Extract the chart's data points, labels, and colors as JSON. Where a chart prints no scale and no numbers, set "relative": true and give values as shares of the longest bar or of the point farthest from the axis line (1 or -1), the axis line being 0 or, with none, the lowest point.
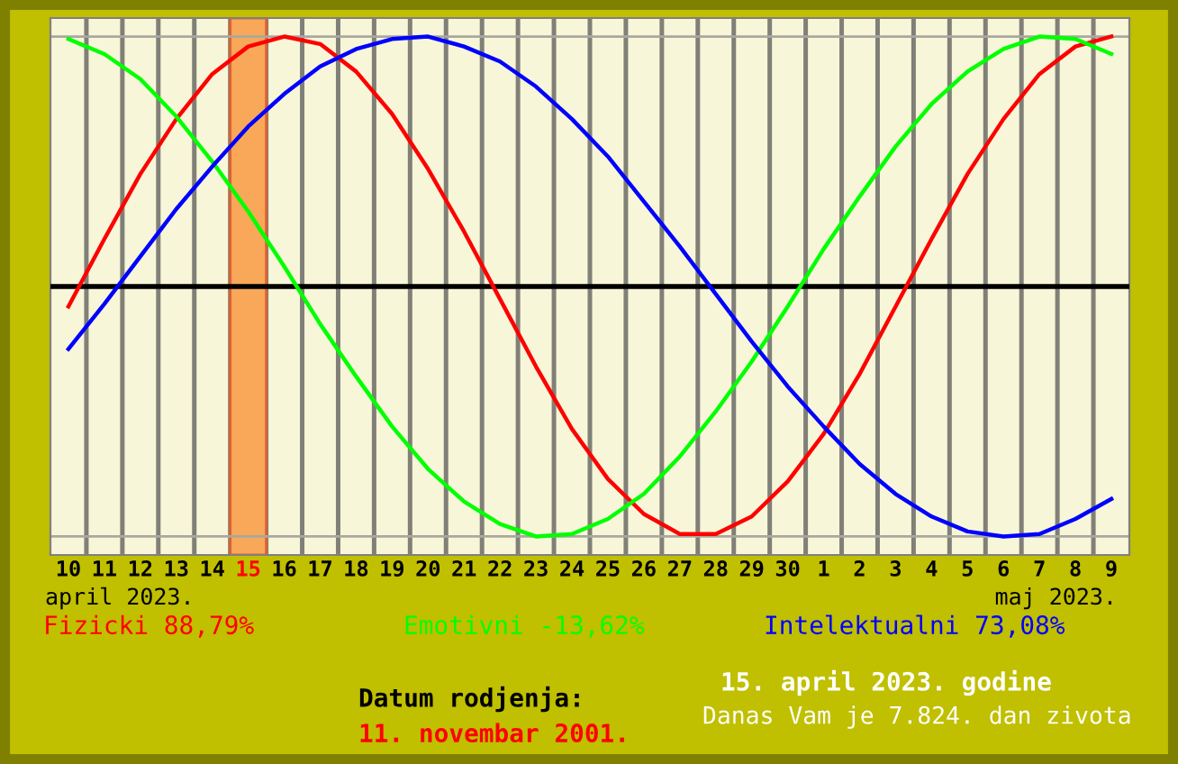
{
  "chart_data": {
    "type": "line",
    "relative": true,
    "categories": [
      "10",
      "11",
      "12",
      "13",
      "14",
      "15",
      "16",
      "17",
      "18",
      "19",
      "20",
      "21",
      "22",
      "23",
      "24",
      "25",
      "26",
      "27",
      "28",
      "29",
      "30",
      "1",
      "2",
      "3",
      "4",
      "5",
      "6",
      "7",
      "8",
      "9"
    ],
    "series": [
      {
        "name": "Fizicki 88,79%",
        "color": "#ff0000",
        "values": [
          -0.08,
          0.19,
          0.45,
          0.67,
          0.85,
          0.96,
          1.0,
          0.97,
          0.86,
          0.69,
          0.47,
          0.22,
          -0.05,
          -0.32,
          -0.57,
          -0.77,
          -0.91,
          -0.99,
          -0.99,
          -0.92,
          -0.78,
          -0.59,
          -0.35,
          -0.08,
          0.19,
          0.45,
          0.67,
          0.85,
          0.96,
          1.0
        ]
      },
      {
        "name": "Emotivni -13,62%",
        "color": "#00ff00",
        "values": [
          0.99,
          0.93,
          0.83,
          0.68,
          0.5,
          0.3,
          0.08,
          -0.15,
          -0.36,
          -0.56,
          -0.73,
          -0.86,
          -0.95,
          -1.0,
          -0.99,
          -0.93,
          -0.83,
          -0.68,
          -0.5,
          -0.3,
          -0.08,
          0.15,
          0.36,
          0.56,
          0.73,
          0.86,
          0.95,
          1.0,
          0.99,
          0.93
        ]
      },
      {
        "name": "Intelektualni 73,08%",
        "color": "#0000ff",
        "values": [
          -0.25,
          -0.07,
          0.12,
          0.31,
          0.48,
          0.64,
          0.77,
          0.88,
          0.95,
          0.99,
          1.0,
          0.96,
          0.9,
          0.8,
          0.67,
          0.52,
          0.34,
          0.16,
          -0.03,
          -0.22,
          -0.4,
          -0.56,
          -0.71,
          -0.83,
          -0.92,
          -0.98,
          -1.0,
          -0.99,
          -0.93,
          -0.85
        ]
      }
    ],
    "bands": [
      {
        "axis": "x",
        "from": "15",
        "to": "15",
        "color": "#f8a858"
      }
    ],
    "ref_lines": [
      {
        "axis": "y",
        "value": 1,
        "color": "#a8a8a0"
      },
      {
        "axis": "y",
        "value": -1,
        "color": "#a8a8a0"
      }
    ],
    "grid": "x",
    "legend": "bottom",
    "marker": "none",
    "line_style": "solid",
    "annotations": [
      "april 2023.",
      "maj 2023.",
      "Datum rodjenja:",
      "11. novembar 2001.",
      "15. april 2023. godine",
      "Danas Vam je 7.824. dan zivota"
    ]
  }
}
